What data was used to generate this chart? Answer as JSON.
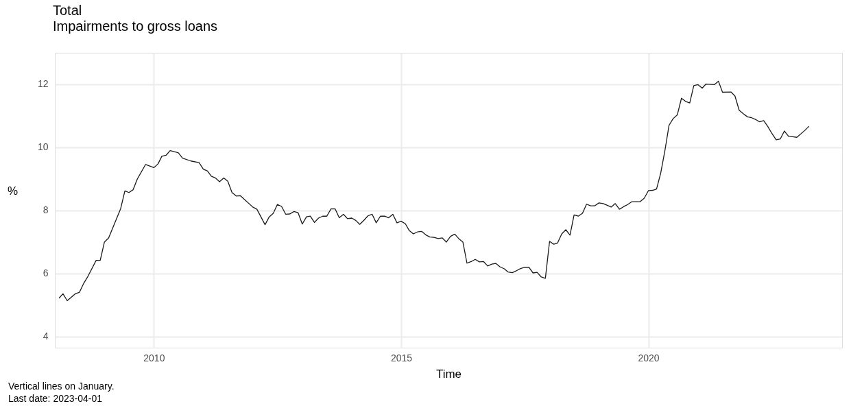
{
  "chart_data": {
    "type": "line",
    "title": "Total",
    "subtitle": "Impairments to gross loans",
    "xlabel": "Time",
    "ylabel": "%",
    "annotations": [
      "Vertical lines on January.",
      "Last date: 2023-04-01"
    ],
    "x": [
      "2008-02",
      "2008-03",
      "2008-04",
      "2008-06",
      "2008-07",
      "2008-08",
      "2008-09",
      "2008-11",
      "2008-12",
      "2009-01",
      "2009-02",
      "2009-05",
      "2009-06",
      "2009-07",
      "2009-08",
      "2009-09",
      "2009-11",
      "2010-01",
      "2010-02",
      "2010-03",
      "2010-04",
      "2010-05",
      "2010-07",
      "2010-08",
      "2010-10",
      "2010-12",
      "2011-01",
      "2011-02",
      "2011-03",
      "2011-04",
      "2011-05",
      "2011-06",
      "2011-07",
      "2011-08",
      "2011-09",
      "2011-10",
      "2012-01",
      "2012-02",
      "2012-04",
      "2012-05",
      "2012-06",
      "2012-07",
      "2012-08",
      "2012-09",
      "2012-10",
      "2012-11",
      "2012-12",
      "2013-01",
      "2013-02",
      "2013-03",
      "2013-04",
      "2013-05",
      "2013-06",
      "2013-07",
      "2013-08",
      "2013-09",
      "2013-10",
      "2013-11",
      "2013-12",
      "2014-01",
      "2014-02",
      "2014-03",
      "2014-04",
      "2014-05",
      "2014-06",
      "2014-07",
      "2014-08",
      "2014-09",
      "2014-10",
      "2014-11",
      "2014-12",
      "2015-01",
      "2015-02",
      "2015-03",
      "2015-04",
      "2015-05",
      "2015-06",
      "2015-07",
      "2015-08",
      "2015-09",
      "2015-10",
      "2015-11",
      "2015-12",
      "2016-01",
      "2016-02",
      "2016-03",
      "2016-04",
      "2016-05",
      "2016-06",
      "2016-07",
      "2016-08",
      "2016-09",
      "2016-10",
      "2016-11",
      "2016-12",
      "2017-01",
      "2017-02",
      "2017-03",
      "2017-04",
      "2017-05",
      "2017-06",
      "2017-07",
      "2017-08",
      "2017-09",
      "2017-10",
      "2017-11",
      "2017-12",
      "2018-01",
      "2018-02",
      "2018-03",
      "2018-04",
      "2018-05",
      "2018-06",
      "2018-07",
      "2018-08",
      "2018-09",
      "2018-10",
      "2018-11",
      "2018-12",
      "2019-01",
      "2019-02",
      "2019-04",
      "2019-05",
      "2019-06",
      "2019-07",
      "2019-08",
      "2019-09",
      "2019-10",
      "2019-11",
      "2019-12",
      "2020-01",
      "2020-02",
      "2020-03",
      "2020-04",
      "2020-05",
      "2020-06",
      "2020-07",
      "2020-08",
      "2020-09",
      "2020-10",
      "2020-11",
      "2020-12",
      "2021-01",
      "2021-02",
      "2021-03",
      "2021-05",
      "2021-06",
      "2021-07",
      "2021-09",
      "2021-10",
      "2021-11",
      "2021-12",
      "2022-01",
      "2022-02",
      "2022-03",
      "2022-04",
      "2022-05",
      "2022-06",
      "2022-07",
      "2022-08",
      "2022-09",
      "2022-10",
      "2022-11",
      "2022-12",
      "2023-01",
      "2023-03",
      "2023-04"
    ],
    "series": [
      {
        "color": "#1a1a1a",
        "values": [
          5.22,
          5.36,
          5.14,
          5.36,
          5.41,
          5.69,
          5.91,
          6.42,
          6.42,
          7.0,
          7.13,
          8.06,
          8.62,
          8.57,
          8.66,
          9.0,
          9.46,
          9.36,
          9.48,
          9.72,
          9.75,
          9.9,
          9.83,
          9.66,
          9.57,
          9.52,
          9.31,
          9.25,
          9.09,
          9.03,
          8.91,
          9.03,
          8.93,
          8.57,
          8.46,
          8.47,
          8.11,
          8.04,
          7.55,
          7.79,
          7.91,
          8.19,
          8.13,
          7.88,
          7.89,
          7.97,
          7.93,
          7.57,
          7.8,
          7.82,
          7.62,
          7.76,
          7.82,
          7.82,
          8.05,
          8.05,
          7.77,
          7.88,
          7.74,
          7.76,
          7.68,
          7.56,
          7.69,
          7.83,
          7.88,
          7.61,
          7.82,
          7.82,
          7.77,
          7.88,
          7.61,
          7.66,
          7.58,
          7.37,
          7.26,
          7.32,
          7.34,
          7.23,
          7.16,
          7.15,
          7.11,
          7.13,
          7.0,
          7.18,
          7.25,
          7.11,
          7.0,
          6.33,
          6.38,
          6.45,
          6.37,
          6.38,
          6.24,
          6.3,
          6.32,
          6.21,
          6.15,
          6.05,
          6.03,
          6.09,
          6.16,
          6.2,
          6.2,
          6.02,
          6.04,
          5.89,
          5.85,
          7.02,
          6.93,
          6.97,
          7.26,
          7.39,
          7.22,
          7.86,
          7.82,
          7.91,
          8.2,
          8.15,
          8.15,
          8.24,
          8.22,
          8.11,
          8.22,
          8.04,
          8.12,
          8.19,
          8.28,
          8.28,
          8.28,
          8.39,
          8.63,
          8.64,
          8.68,
          9.19,
          9.88,
          10.7,
          10.91,
          11.03,
          11.56,
          11.46,
          11.41,
          11.96,
          11.99,
          11.88,
          12.01,
          11.99,
          12.1,
          11.75,
          11.76,
          11.63,
          11.18,
          11.07,
          10.97,
          10.94,
          10.89,
          10.81,
          10.85,
          10.66,
          10.44,
          10.24,
          10.27,
          10.52,
          10.35,
          10.34,
          10.32,
          10.54,
          10.67
        ]
      }
    ],
    "xlim": [
      "2008-01-01",
      "2023-12-01"
    ],
    "xticks": [
      {
        "value": "2010-01-01",
        "label": "2010"
      },
      {
        "value": "2015-01-01",
        "label": "2015"
      },
      {
        "value": "2020-01-01",
        "label": "2020"
      }
    ],
    "ylim": [
      3.65,
      13.0
    ],
    "yticks": [
      4,
      6,
      8,
      10,
      12
    ],
    "grid": true,
    "line_style": "solid",
    "marker": "none"
  }
}
